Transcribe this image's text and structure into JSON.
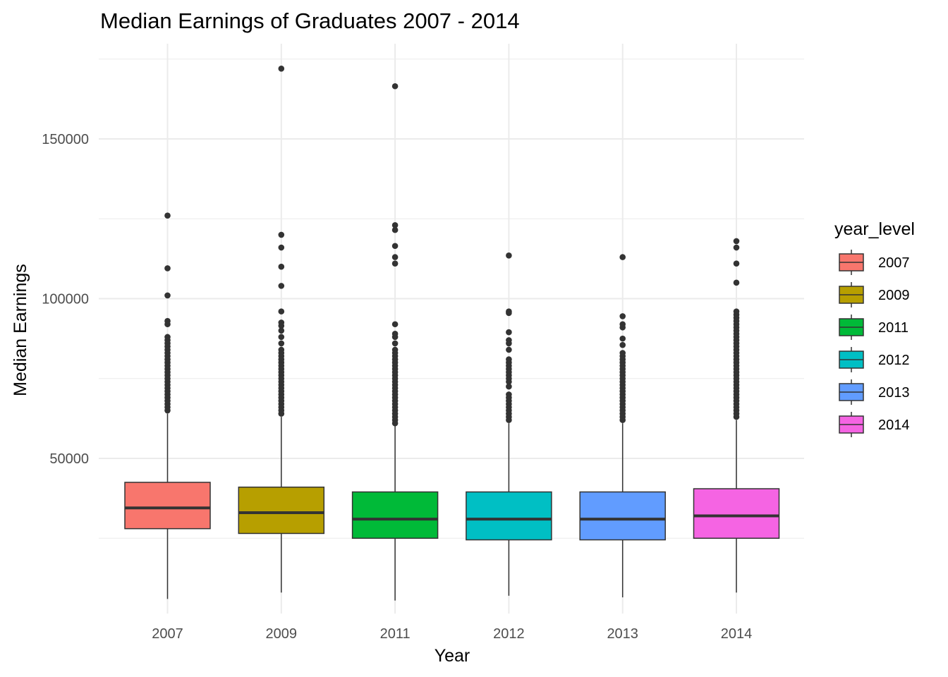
{
  "chart_data": {
    "type": "box",
    "title": "Median Earnings of Graduates 2007 - 2014",
    "xlabel": "Year",
    "ylabel": "Median Earnings",
    "categories": [
      "2007",
      "2009",
      "2011",
      "2012",
      "2013",
      "2014"
    ],
    "yticks": [
      50000,
      100000,
      150000
    ],
    "ytick_labels": [
      "50000",
      "100000",
      "150000"
    ],
    "ylim": [
      4000,
      178000
    ],
    "grid": true,
    "legend": {
      "title": "year_level",
      "position": "right",
      "entries": [
        "2007",
        "2009",
        "2011",
        "2012",
        "2013",
        "2014"
      ]
    },
    "colors": [
      "#F8766D",
      "#B79F00",
      "#00BA38",
      "#00BFC4",
      "#619CFF",
      "#F564E3"
    ],
    "series": [
      {
        "name": "2007",
        "min": 6000,
        "q1": 28000,
        "median": 34500,
        "q3": 42500,
        "max": 64000,
        "outliers": [
          126000,
          109500,
          101000,
          93000,
          92000,
          88000,
          87000,
          86000,
          85000,
          84000,
          83000,
          82000,
          81000,
          80000,
          79000,
          78000,
          77000,
          76000,
          75000,
          74000,
          73000,
          72000,
          71000,
          70000,
          69000,
          68000,
          67000,
          66000,
          65000
        ]
      },
      {
        "name": "2009",
        "min": 8000,
        "q1": 26500,
        "median": 33000,
        "q3": 41000,
        "max": 63000,
        "outliers": [
          172000,
          120000,
          116000,
          110000,
          104000,
          96000,
          92500,
          91500,
          90000,
          88000,
          86000,
          84000,
          83000,
          82000,
          81000,
          80000,
          79000,
          78000,
          77000,
          76000,
          75000,
          74000,
          73000,
          72000,
          71000,
          70000,
          69000,
          68000,
          67000,
          66000,
          65000,
          64000
        ]
      },
      {
        "name": "2011",
        "min": 5500,
        "q1": 25000,
        "median": 31000,
        "q3": 39500,
        "max": 60500,
        "outliers": [
          166500,
          123000,
          121500,
          116500,
          113000,
          111000,
          92000,
          89000,
          88000,
          86000,
          84000,
          83000,
          82000,
          81000,
          80000,
          79000,
          78000,
          77000,
          76000,
          75000,
          74000,
          73000,
          72000,
          71000,
          70000,
          69000,
          68000,
          67000,
          66000,
          65000,
          64000,
          63000,
          62000,
          61000
        ]
      },
      {
        "name": "2012",
        "min": 7000,
        "q1": 24500,
        "median": 31000,
        "q3": 39500,
        "max": 61000,
        "outliers": [
          113500,
          96000,
          95500,
          89500,
          87000,
          86000,
          84000,
          81000,
          80000,
          79000,
          78000,
          77000,
          76000,
          75000,
          74000,
          72500,
          70000,
          69000,
          68000,
          67000,
          66000,
          65000,
          64000,
          63000,
          62000
        ]
      },
      {
        "name": "2013",
        "min": 6500,
        "q1": 24500,
        "median": 31000,
        "q3": 39500,
        "max": 61000,
        "outliers": [
          113000,
          94500,
          92000,
          91000,
          87500,
          85500,
          83000,
          82000,
          81000,
          80000,
          79000,
          78000,
          77000,
          76000,
          75000,
          74000,
          73000,
          72000,
          71000,
          70000,
          69000,
          68000,
          67000,
          66000,
          65000,
          64000,
          63000,
          62000
        ]
      },
      {
        "name": "2014",
        "min": 8000,
        "q1": 25000,
        "median": 32000,
        "q3": 40500,
        "max": 62000,
        "outliers": [
          118000,
          116000,
          111000,
          105000,
          96000,
          95000,
          94000,
          93000,
          92000,
          91000,
          90000,
          89000,
          88000,
          87000,
          86000,
          85000,
          84000,
          83000,
          82000,
          81000,
          80000,
          79000,
          78000,
          77000,
          76000,
          75000,
          74000,
          73000,
          72000,
          71000,
          70000,
          69000,
          68000,
          67000,
          66000,
          65000,
          64000,
          63000
        ]
      }
    ]
  }
}
